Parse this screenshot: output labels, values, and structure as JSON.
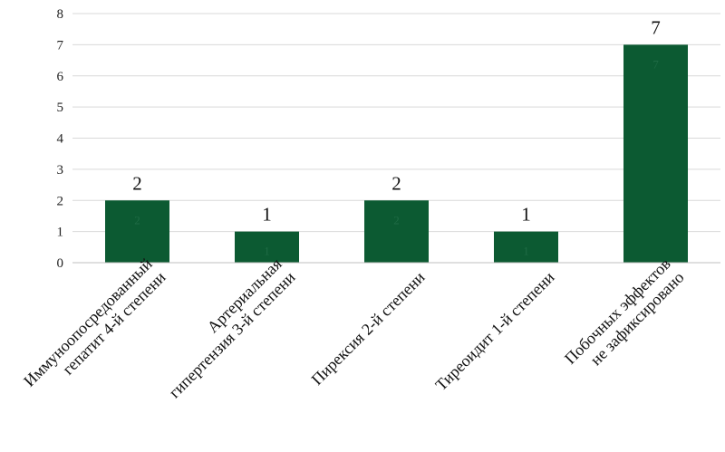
{
  "chart_data": {
    "type": "bar",
    "categories": [
      [
        "Иммуноопосредованный",
        "гепатит 4-й степени"
      ],
      [
        "Артериальная",
        "гипертензия 3-й степени"
      ],
      [
        "Пирексия 2-й степени"
      ],
      [
        "Тиреоидит 1-й степени"
      ],
      [
        "Побочных эффектов",
        "не зафиксировано"
      ]
    ],
    "values": [
      2,
      1,
      2,
      1,
      7
    ],
    "data_labels": [
      "2",
      "1",
      "2",
      "1",
      "7"
    ],
    "ylim": [
      0,
      8
    ],
    "yticks": [
      "0",
      "1",
      "2",
      "3",
      "4",
      "5",
      "6",
      "7",
      "8"
    ],
    "title": "",
    "xlabel": "",
    "ylabel": "",
    "grid": true,
    "legend": "none",
    "bar_color": "#0c5a32"
  }
}
